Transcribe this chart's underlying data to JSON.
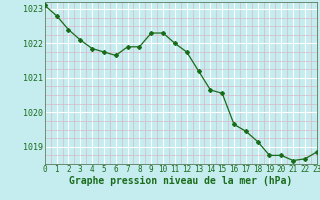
{
  "x": [
    0,
    1,
    2,
    3,
    4,
    5,
    6,
    7,
    8,
    9,
    10,
    11,
    12,
    13,
    14,
    15,
    16,
    17,
    18,
    19,
    20,
    21,
    22,
    23
  ],
  "y": [
    1023.1,
    1022.8,
    1022.4,
    1022.1,
    1021.85,
    1021.75,
    1021.65,
    1021.9,
    1021.9,
    1022.3,
    1022.3,
    1022.0,
    1021.75,
    1021.2,
    1020.65,
    1020.55,
    1019.65,
    1019.45,
    1019.15,
    1018.75,
    1018.75,
    1018.6,
    1018.65,
    1018.85
  ],
  "xlim": [
    0,
    23
  ],
  "ylim": [
    1018.5,
    1023.2
  ],
  "yticks": [
    1019,
    1020,
    1021,
    1022,
    1023
  ],
  "xticks": [
    0,
    1,
    2,
    3,
    4,
    5,
    6,
    7,
    8,
    9,
    10,
    11,
    12,
    13,
    14,
    15,
    16,
    17,
    18,
    19,
    20,
    21,
    22,
    23
  ],
  "xlabel": "Graphe pression niveau de la mer (hPa)",
  "line_color": "#1a6b1a",
  "marker": "D",
  "marker_size": 2.0,
  "linewidth": 0.9,
  "bg_color": "#c5edf0",
  "major_grid_color": "#ffffff",
  "minor_grid_color": "#d8b8c8",
  "tick_label_color": "#1a6b1a",
  "xlabel_color": "#1a6b1a",
  "xlabel_fontsize": 7.0,
  "tick_fontsize": 5.5,
  "ytick_fontsize": 6.0
}
